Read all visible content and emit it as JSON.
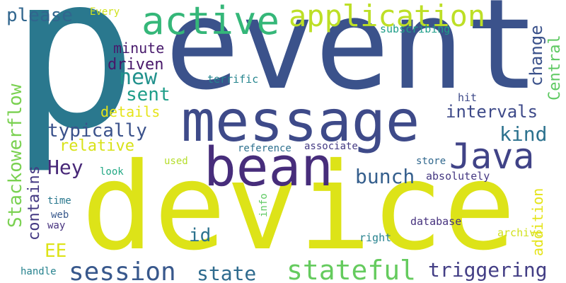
{
  "words": [
    {
      "text": "p",
      "color": "#2a788e"
    },
    {
      "text": "event",
      "color": "#3b528b"
    },
    {
      "text": "device",
      "color": "#dde318"
    },
    {
      "text": "message",
      "color": "#3e4a89"
    },
    {
      "text": "bean",
      "color": "#472d7b"
    },
    {
      "text": "active",
      "color": "#35b779"
    },
    {
      "text": "application",
      "color": "#bddf26"
    },
    {
      "text": "Java",
      "color": "#404387"
    },
    {
      "text": "session",
      "color": "#38588c"
    },
    {
      "text": "stateful",
      "color": "#65cb5e"
    },
    {
      "text": "triggering",
      "color": "#433e85"
    },
    {
      "text": "state",
      "color": "#2f6b8e"
    },
    {
      "text": "please",
      "color": "#31668e"
    },
    {
      "text": "Every",
      "color": "#d0e11c"
    },
    {
      "text": "subscribing",
      "color": "#1f9e89"
    },
    {
      "text": "minute",
      "color": "#481a6c"
    },
    {
      "text": "driven",
      "color": "#481769"
    },
    {
      "text": "new",
      "color": "#21918c"
    },
    {
      "text": "sent",
      "color": "#1f9e89"
    },
    {
      "text": "details",
      "color": "#e5e419"
    },
    {
      "text": "relative",
      "color": "#3b528b"
    },
    {
      "text": "typically",
      "color": "#d8e219"
    },
    {
      "text": "Hey",
      "color": "#482878"
    },
    {
      "text": "intervals",
      "color": "#3e4a89"
    },
    {
      "text": "kind",
      "color": "#2c728e"
    },
    {
      "text": "bunch",
      "color": "#355f8d"
    },
    {
      "text": "terrific",
      "color": "#25858e"
    },
    {
      "text": "hit",
      "color": "#3e4a89"
    },
    {
      "text": "reference",
      "color": "#2d708e"
    },
    {
      "text": "associate",
      "color": "#443a83"
    },
    {
      "text": "look",
      "color": "#22a884"
    },
    {
      "text": "used",
      "color": "#b5de2b"
    },
    {
      "text": "store",
      "color": "#31688e"
    },
    {
      "text": "absolutely",
      "color": "#453882"
    },
    {
      "text": "time",
      "color": "#2a788e"
    },
    {
      "text": "web",
      "color": "#38588c"
    },
    {
      "text": "way",
      "color": "#46327e"
    },
    {
      "text": "info",
      "color": "#5ec962"
    },
    {
      "text": "id",
      "color": "#2c728e"
    },
    {
      "text": "database",
      "color": "#46327e"
    },
    {
      "text": "right",
      "color": "#26828e"
    },
    {
      "text": "archive",
      "color": "#d0e11c"
    },
    {
      "text": "handle",
      "color": "#26828e"
    },
    {
      "text": "EE",
      "color": "#dde318"
    },
    {
      "text": "contains",
      "color": "#443983"
    },
    {
      "text": "Stackowerflow",
      "color": "#7ad151"
    },
    {
      "text": "change",
      "color": "#3b528b"
    },
    {
      "text": "Central",
      "color": "#5ec962"
    },
    {
      "text": "addition",
      "color": "#e5e419"
    }
  ]
}
